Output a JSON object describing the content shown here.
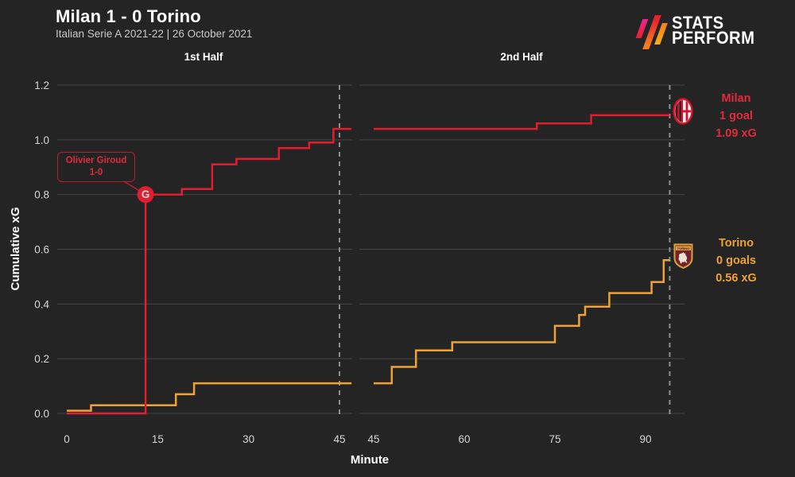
{
  "header": {
    "title": "Milan 1 - 0 Torino",
    "subtitle": "Italian Serie A 2021-22 | 26 October 2021"
  },
  "logo": {
    "line1": "STATS",
    "line2": "PERFORM"
  },
  "panels": {
    "first": {
      "label": "1st Half"
    },
    "second": {
      "label": "2nd Half"
    }
  },
  "axes": {
    "y_label": "Cumulative xG",
    "x_label": "Minute"
  },
  "legend": {
    "milan": {
      "name": "Milan",
      "goals": "1 goal",
      "xg": "1.09 xG",
      "color": "#e22b3c"
    },
    "torino": {
      "name": "Torino",
      "goals": "0 goals",
      "xg": "0.56 xG",
      "color": "#f0a235"
    }
  },
  "annotation": {
    "line1": "Olivier Giroud",
    "line2": "1-0"
  },
  "colors": {
    "background": "#242424",
    "gridline": "#464646",
    "dashed_line": "#8f8f8f",
    "milan_line": "#e11d30",
    "torino_line": "#f0a235"
  },
  "chart_data": {
    "type": "line",
    "step": true,
    "title": "Milan 1 - 0 Torino cumulative xG",
    "xlabel": "Minute",
    "ylabel": "Cumulative xG",
    "ylim": [
      0,
      1.2
    ],
    "yticks": [
      0,
      0.2,
      0.4,
      0.6,
      0.8,
      1.0,
      1.2
    ],
    "grid": true,
    "panels": [
      {
        "label": "1st Half",
        "xlim": [
          0,
          47
        ],
        "xticks": [
          0,
          15,
          30,
          45
        ],
        "dashed_minute": 45
      },
      {
        "label": "2nd Half",
        "xlim": [
          45,
          94
        ],
        "xticks": [
          45,
          60,
          75,
          90
        ],
        "dashed_minute": 94
      }
    ],
    "series": [
      {
        "name": "Milan",
        "color": "#e11d30",
        "goals": 1,
        "total_xg": 1.09,
        "first_half": [
          [
            0,
            0
          ],
          [
            13,
            0.8
          ],
          [
            19,
            0.82
          ],
          [
            24,
            0.91
          ],
          [
            28,
            0.93
          ],
          [
            35,
            0.97
          ],
          [
            40,
            0.99
          ],
          [
            44,
            1.04
          ]
        ],
        "second_half": [
          [
            45,
            1.04
          ],
          [
            72,
            1.06
          ],
          [
            81,
            1.09
          ]
        ]
      },
      {
        "name": "Torino",
        "color": "#f0a235",
        "goals": 0,
        "total_xg": 0.56,
        "first_half": [
          [
            0,
            0.01
          ],
          [
            4,
            0.03
          ],
          [
            18,
            0.07
          ],
          [
            21,
            0.11
          ]
        ],
        "second_half": [
          [
            45,
            0.11
          ],
          [
            48,
            0.17
          ],
          [
            52,
            0.23
          ],
          [
            58,
            0.26
          ],
          [
            75,
            0.32
          ],
          [
            79,
            0.36
          ],
          [
            80,
            0.39
          ],
          [
            84,
            0.44
          ],
          [
            91,
            0.48
          ],
          [
            93,
            0.56
          ]
        ]
      }
    ],
    "goal_markers": [
      {
        "team": "Milan",
        "player": "Olivier Giroud",
        "score": "1-0",
        "minute": 13,
        "value": 0.8,
        "half": "first",
        "label": "G"
      }
    ]
  }
}
